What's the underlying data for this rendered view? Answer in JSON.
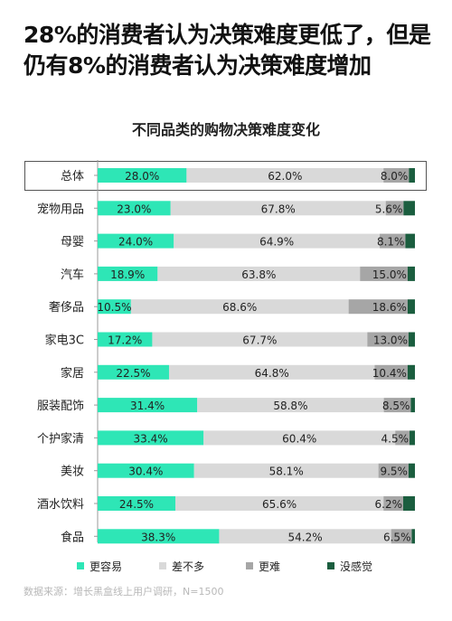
{
  "headline": "28%的消费者认为决策难度更低了，但是仍有8%的消费者认为决策难度增加",
  "source": "数据来源：增长黑盒线上用户调研，N=1500",
  "colors": {
    "easier": "#2ee6b6",
    "same": "#d9d9d9",
    "harder": "#a6a6a6",
    "unaware": "#1b5e3f"
  },
  "chart_data": {
    "type": "bar",
    "orientation": "horizontal",
    "stacked": "percent",
    "title": "不同品类的购物决策难度变化",
    "legend_position": "bottom",
    "categories": [
      "总体",
      "宠物用品",
      "母婴",
      "汽车",
      "奢侈品",
      "家电3C",
      "家居",
      "服装配饰",
      "个护家清",
      "美妆",
      "酒水饮料",
      "食品"
    ],
    "series": [
      {
        "name": "更容易",
        "values": [
          28.0,
          23.0,
          24.0,
          18.9,
          10.5,
          17.2,
          22.5,
          31.4,
          33.4,
          30.4,
          24.5,
          38.3
        ],
        "labels": [
          "28.0%",
          "23.0%",
          "24.0%",
          "18.9%",
          "10.5%",
          "17.2%",
          "22.5%",
          "31.4%",
          "33.4%",
          "30.4%",
          "24.5%",
          "38.3%"
        ]
      },
      {
        "name": "差不多",
        "values": [
          62.0,
          67.8,
          64.9,
          63.8,
          68.6,
          67.7,
          64.8,
          58.8,
          60.4,
          58.1,
          65.6,
          54.2
        ],
        "labels": [
          "62.0%",
          "67.8%",
          "64.9%",
          "63.8%",
          "68.6%",
          "67.7%",
          "64.8%",
          "58.8%",
          "60.4%",
          "58.1%",
          "65.6%",
          "54.2%"
        ]
      },
      {
        "name": "更难",
        "values": [
          8.0,
          5.6,
          8.1,
          15.0,
          18.6,
          13.0,
          10.4,
          8.5,
          4.5,
          9.5,
          6.2,
          6.5
        ],
        "labels": [
          "8.0%",
          "5.6%",
          "8.1%",
          "15.0%",
          "18.6%",
          "13.0%",
          "10.4%",
          "8.5%",
          "4.5%",
          "9.5%",
          "6.2%",
          "6.5%"
        ]
      },
      {
        "name": "没感觉",
        "values": [
          1.9,
          3.6,
          3.0,
          2.3,
          2.3,
          2.0,
          2.3,
          1.3,
          1.7,
          2.0,
          3.7,
          1.0
        ]
      }
    ]
  }
}
